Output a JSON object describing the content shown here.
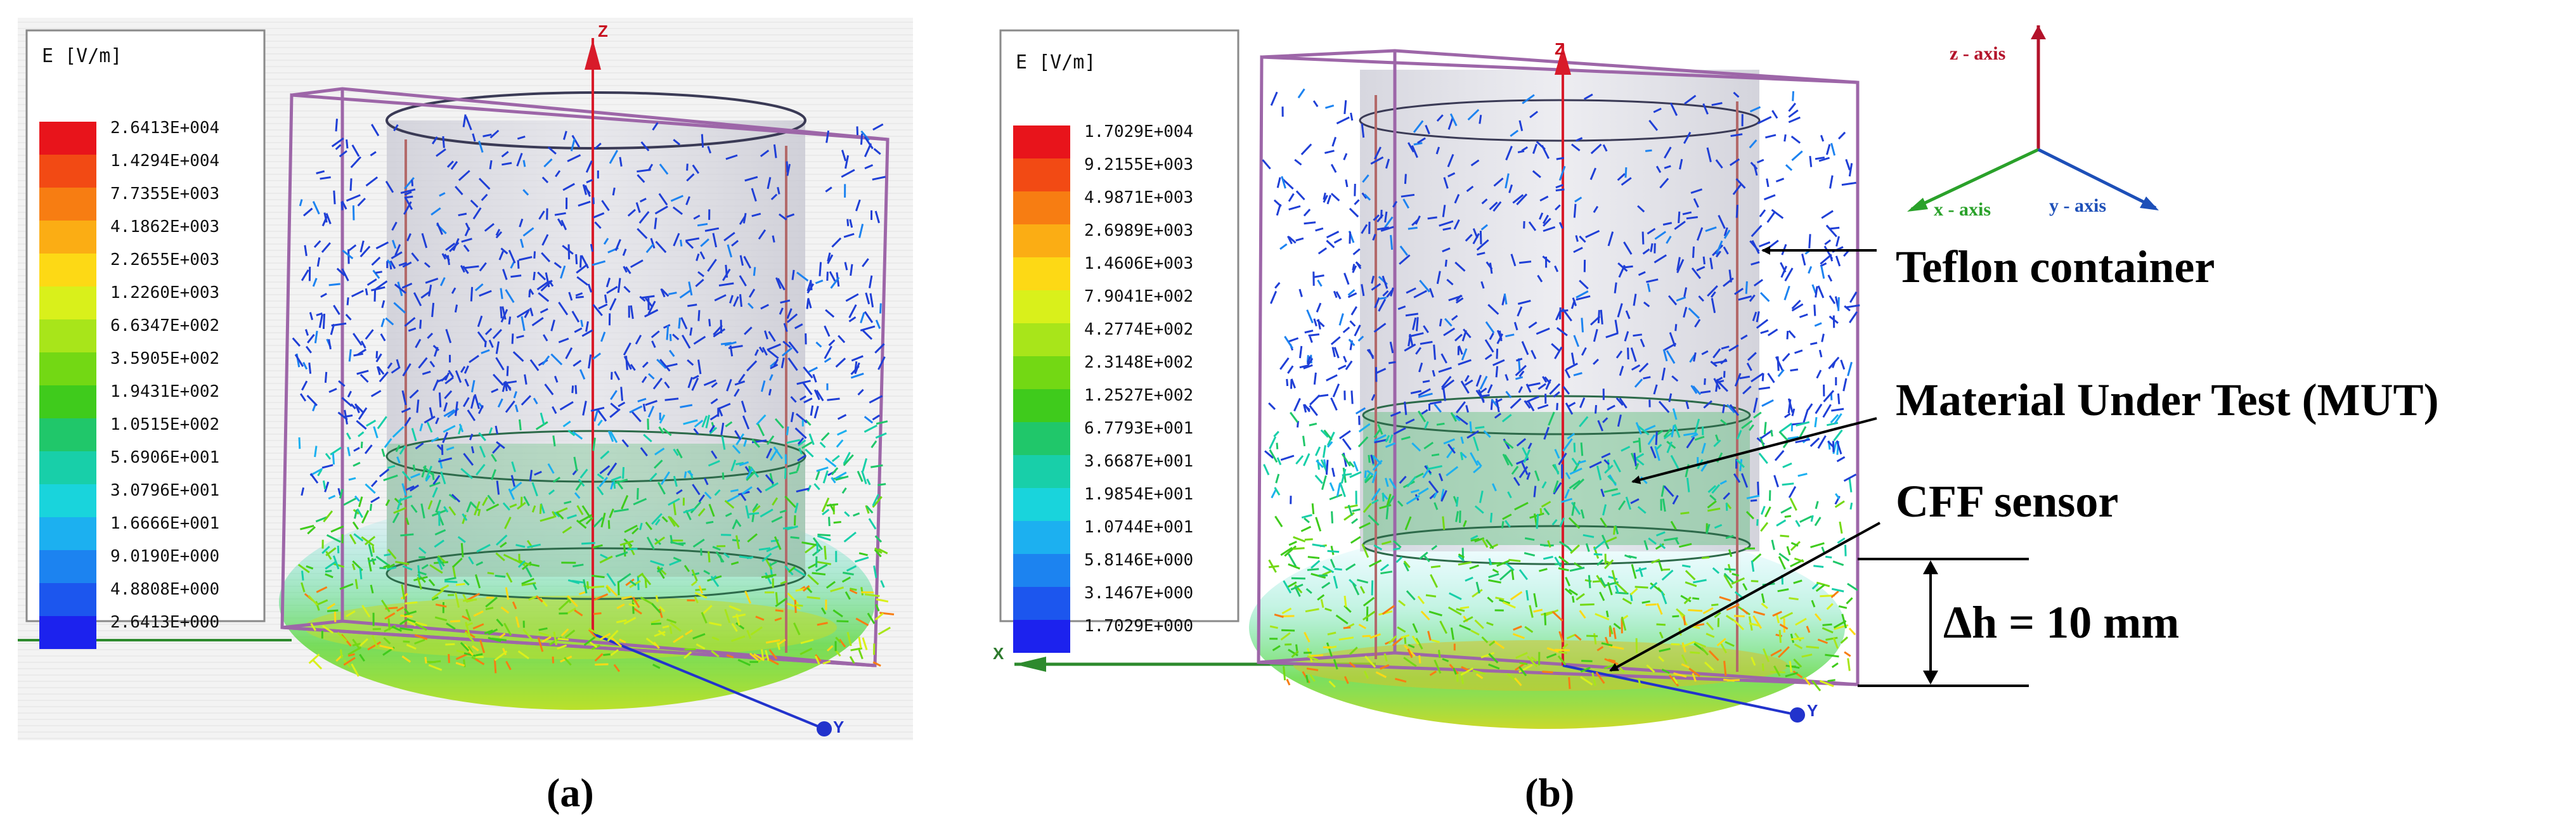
{
  "panel_a": {
    "legend": {
      "title": "E [V/m]",
      "values": [
        "2.6413E+004",
        "1.4294E+004",
        "7.7355E+003",
        "4.1862E+003",
        "2.2655E+003",
        "1.2260E+003",
        "6.6347E+002",
        "3.5905E+002",
        "1.9431E+002",
        "1.0515E+002",
        "5.6906E+001",
        "3.0796E+001",
        "1.6666E+001",
        "9.0190E+000",
        "4.8808E+000",
        "2.6413E+000"
      ]
    },
    "axis_z": "Z",
    "axis_y": "Y",
    "caption": "(a)"
  },
  "panel_b": {
    "legend": {
      "title": "E [V/m]",
      "values": [
        "1.7029E+004",
        "9.2155E+003",
        "4.9871E+003",
        "2.6989E+003",
        "1.4606E+003",
        "7.9041E+002",
        "4.2774E+002",
        "2.3148E+002",
        "1.2527E+002",
        "6.7793E+001",
        "3.6687E+001",
        "1.9854E+001",
        "1.0744E+001",
        "5.8146E+000",
        "3.1467E+000",
        "1.7029E+000"
      ]
    },
    "axis_z": "Z",
    "axis_x": "X",
    "axis_y": "Y",
    "caption": "(b)"
  },
  "legend_colors": [
    "#e8141b",
    "#f24a14",
    "#f77d12",
    "#fbad14",
    "#fdd915",
    "#d9f01b",
    "#a8e51a",
    "#73d814",
    "#3fcb1c",
    "#20c76a",
    "#18cfa9",
    "#19d4dc",
    "#1cb0f0",
    "#1c83f0",
    "#1c56ee",
    "#1c22ee"
  ],
  "coordinate_triad": {
    "z_label": "z - axis",
    "x_label": "x - axis",
    "y_label": "y - axis",
    "z_color": "#b3122a",
    "x_color": "#2aa12a",
    "y_color": "#1d4fb8"
  },
  "annotations": {
    "teflon": "Teflon container",
    "mut": "Material Under Test (MUT)",
    "sensor": "CFF sensor",
    "dh": "Δh = 10 mm"
  }
}
